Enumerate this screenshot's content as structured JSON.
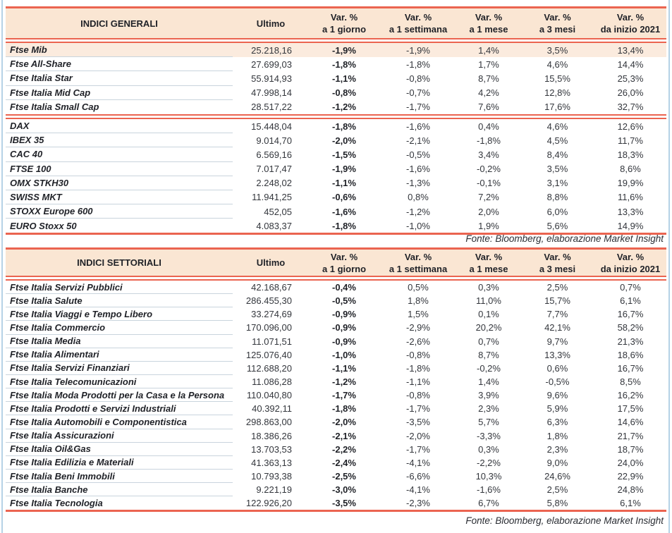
{
  "colors": {
    "accent_red": "#eb6450",
    "header_bg": "#fae6d3",
    "highlight_row_bg": "#fbebde",
    "separator": "#c9d4dd",
    "edge_blue": "#b5d2e6"
  },
  "tables": [
    {
      "title": "INDICI GENERALI",
      "ultimo_header": "Ultimo",
      "var_headers": [
        {
          "line1": "Var. %",
          "line2": "a 1 giorno"
        },
        {
          "line1": "Var. %",
          "line2": "a 1 settimana"
        },
        {
          "line1": "Var. %",
          "line2": "a 1 mese"
        },
        {
          "line1": "Var. %",
          "line2": "a 3 mesi"
        },
        {
          "line1": "Var. %",
          "line2": "da inizio 2021"
        }
      ],
      "groups": [
        {
          "rows": [
            {
              "name": "Ftse Mib",
              "ultimo": "25.218,16",
              "values": [
                "-1,9%",
                "-1,9%",
                "1,4%",
                "3,5%",
                "13,4%"
              ],
              "highlight": true
            },
            {
              "name": "Ftse All-Share",
              "ultimo": "27.699,03",
              "values": [
                "-1,8%",
                "-1,8%",
                "1,7%",
                "4,6%",
                "14,4%"
              ]
            },
            {
              "name": "Ftse Italia Star",
              "ultimo": "55.914,93",
              "values": [
                "-1,1%",
                "-0,8%",
                "8,7%",
                "15,5%",
                "25,3%"
              ]
            },
            {
              "name": "Ftse Italia Mid Cap",
              "ultimo": "47.998,14",
              "values": [
                "-0,8%",
                "-0,7%",
                "4,2%",
                "12,8%",
                "26,0%"
              ]
            },
            {
              "name": "Ftse Italia Small Cap",
              "ultimo": "28.517,22",
              "values": [
                "-1,2%",
                "-1,7%",
                "7,6%",
                "17,6%",
                "32,7%"
              ]
            }
          ]
        },
        {
          "rows": [
            {
              "name": "DAX",
              "ultimo": "15.448,04",
              "values": [
                "-1,8%",
                "-1,6%",
                "0,4%",
                "4,6%",
                "12,6%"
              ]
            },
            {
              "name": "IBEX 35",
              "ultimo": "9.014,70",
              "values": [
                "-2,0%",
                "-2,1%",
                "-1,8%",
                "4,5%",
                "11,7%"
              ]
            },
            {
              "name": "CAC 40",
              "ultimo": "6.569,16",
              "values": [
                "-1,5%",
                "-0,5%",
                "3,4%",
                "8,4%",
                "18,3%"
              ]
            },
            {
              "name": "FTSE 100",
              "ultimo": "7.017,47",
              "values": [
                "-1,9%",
                "-1,6%",
                "-0,2%",
                "3,5%",
                "8,6%"
              ]
            },
            {
              "name": "OMX STKH30",
              "ultimo": "2.248,02",
              "values": [
                "-1,1%",
                "-1,3%",
                "-0,1%",
                "3,1%",
                "19,9%"
              ]
            },
            {
              "name": "SWISS MKT",
              "ultimo": "11.941,25",
              "values": [
                "-0,6%",
                "0,8%",
                "7,2%",
                "8,8%",
                "11,6%"
              ]
            },
            {
              "name": "STOXX Europe 600",
              "ultimo": "452,05",
              "values": [
                "-1,6%",
                "-1,2%",
                "2,0%",
                "6,0%",
                "13,3%"
              ]
            },
            {
              "name": "EURO Stoxx 50",
              "ultimo": "4.083,37",
              "values": [
                "-1,8%",
                "-1,0%",
                "1,9%",
                "5,6%",
                "14,9%"
              ]
            }
          ]
        }
      ],
      "fonte": "Fonte: Bloomberg, elaborazione Market Insight"
    },
    {
      "title": "INDICI SETTORIALI",
      "ultimo_header": "Ultimo",
      "var_headers": [
        {
          "line1": "Var. %",
          "line2": "a 1 giorno"
        },
        {
          "line1": "Var. %",
          "line2": "a 1 settimana"
        },
        {
          "line1": "Var. %",
          "line2": "a 1 mese"
        },
        {
          "line1": "Var. %",
          "line2": "a 3 mesi"
        },
        {
          "line1": "Var. %",
          "line2": "da inizio 2021"
        }
      ],
      "groups": [
        {
          "rows": [
            {
              "name": "Ftse Italia Servizi Pubblici",
              "ultimo": "42.168,67",
              "values": [
                "-0,4%",
                "0,5%",
                "0,3%",
                "2,5%",
                "0,7%"
              ]
            },
            {
              "name": "Ftse Italia Salute",
              "ultimo": "286.455,30",
              "values": [
                "-0,5%",
                "1,8%",
                "11,0%",
                "15,7%",
                "6,1%"
              ]
            },
            {
              "name": "Ftse Italia Viaggi e Tempo Libero",
              "ultimo": "33.274,69",
              "values": [
                "-0,9%",
                "1,5%",
                "0,1%",
                "7,7%",
                "16,7%"
              ]
            },
            {
              "name": "Ftse Italia Commercio",
              "ultimo": "170.096,00",
              "values": [
                "-0,9%",
                "-2,9%",
                "20,2%",
                "42,1%",
                "58,2%"
              ]
            },
            {
              "name": "Ftse Italia Media",
              "ultimo": "11.071,51",
              "values": [
                "-0,9%",
                "-2,6%",
                "0,7%",
                "9,7%",
                "21,3%"
              ]
            },
            {
              "name": "Ftse Italia Alimentari",
              "ultimo": "125.076,40",
              "values": [
                "-1,0%",
                "-0,8%",
                "8,7%",
                "13,3%",
                "18,6%"
              ]
            },
            {
              "name": "Ftse Italia Servizi Finanziari",
              "ultimo": "112.688,20",
              "values": [
                "-1,1%",
                "-1,8%",
                "-0,2%",
                "0,6%",
                "16,7%"
              ]
            },
            {
              "name": "Ftse Italia Telecomunicazioni",
              "ultimo": "11.086,28",
              "values": [
                "-1,2%",
                "-1,1%",
                "1,4%",
                "-0,5%",
                "8,5%"
              ]
            },
            {
              "name": "Ftse Italia Moda Prodotti per la Casa e la Persona",
              "ultimo": "110.040,80",
              "values": [
                "-1,7%",
                "-0,8%",
                "3,9%",
                "9,6%",
                "16,2%"
              ]
            },
            {
              "name": "Ftse Italia Prodotti e Servizi Industriali",
              "ultimo": "40.392,11",
              "values": [
                "-1,8%",
                "-1,7%",
                "2,3%",
                "5,9%",
                "17,5%"
              ]
            },
            {
              "name": "Ftse Italia Automobili e Componentistica",
              "ultimo": "298.863,00",
              "values": [
                "-2,0%",
                "-3,5%",
                "5,7%",
                "6,3%",
                "14,6%"
              ]
            },
            {
              "name": "Ftse Italia Assicurazioni",
              "ultimo": "18.386,26",
              "values": [
                "-2,1%",
                "-2,0%",
                "-3,3%",
                "1,8%",
                "21,7%"
              ]
            },
            {
              "name": "Ftse Italia Oil&Gas",
              "ultimo": "13.703,53",
              "values": [
                "-2,2%",
                "-1,7%",
                "0,3%",
                "2,3%",
                "18,7%"
              ]
            },
            {
              "name": "Ftse Italia Edilizia e Materiali",
              "ultimo": "41.363,13",
              "values": [
                "-2,4%",
                "-4,1%",
                "-2,2%",
                "9,0%",
                "24,0%"
              ]
            },
            {
              "name": "Ftse Italia Beni Immobili",
              "ultimo": "10.793,38",
              "values": [
                "-2,5%",
                "-6,6%",
                "10,3%",
                "24,6%",
                "22,9%"
              ]
            },
            {
              "name": "Ftse Italia Banche",
              "ultimo": "9.221,19",
              "values": [
                "-3,0%",
                "-4,1%",
                "-1,6%",
                "2,5%",
                "24,8%"
              ]
            },
            {
              "name": "Ftse Italia Tecnologia",
              "ultimo": "122.926,20",
              "values": [
                "-3,5%",
                "-2,3%",
                "6,7%",
                "5,8%",
                "6,1%"
              ]
            }
          ]
        }
      ],
      "fonte": "Fonte: Bloomberg, elaborazione Market Insight"
    }
  ]
}
